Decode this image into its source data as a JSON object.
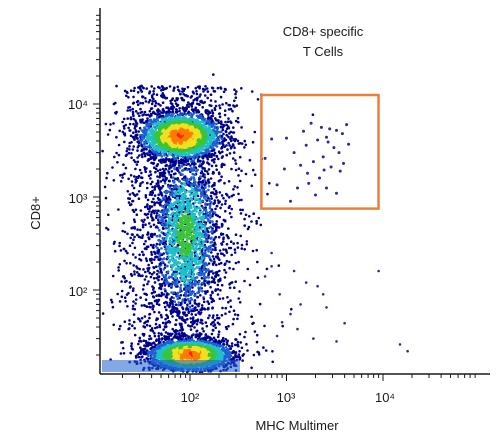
{
  "chart_data": {
    "type": "scatter",
    "title": "",
    "xlabel": "MHC Multimer",
    "ylabel": "CD8+",
    "x_scale": "log",
    "y_scale": "log",
    "xlim": [
      12,
      40000
    ],
    "ylim": [
      15,
      100000
    ],
    "x_ticks": [
      {
        "value": 100,
        "label": "10²"
      },
      {
        "value": 1000,
        "label": "10³"
      },
      {
        "value": 10000,
        "label": "10⁴"
      }
    ],
    "y_ticks": [
      {
        "value": 100,
        "label": "10²"
      },
      {
        "value": 1000,
        "label": "10³"
      },
      {
        "value": 10000,
        "label": "10⁴"
      }
    ],
    "grid": false,
    "colormap": [
      "#00008b",
      "#1f5fd1",
      "#20c0c8",
      "#3ac43a",
      "#f0e020",
      "#ff7a00",
      "#ff1a00"
    ],
    "populations": [
      {
        "label": "",
        "x_center": 80,
        "y_center": 4500,
        "x_spread": 0.2,
        "y_spread": 0.12,
        "density": "high"
      },
      {
        "label": "",
        "x_center": 100,
        "y_center": 20,
        "x_spread": 0.2,
        "y_spread": 0.08,
        "density": "highest"
      },
      {
        "label": "",
        "x_center": 90,
        "y_center": 400,
        "x_spread": 0.15,
        "y_spread": 0.4,
        "density": "medium"
      }
    ],
    "gate": {
      "label_line1": "CD8+ specific",
      "label_line2": "T Cells",
      "color": "#e9803a",
      "x_range": [
        550,
        9000
      ],
      "y_range": [
        750,
        12500
      ]
    },
    "gate_events": [
      [
        1800,
        6200
      ],
      [
        2300,
        5600
      ],
      [
        2800,
        5400
      ],
      [
        3300,
        5200
      ],
      [
        3800,
        4800
      ],
      [
        2600,
        4400
      ],
      [
        2100,
        4100
      ],
      [
        1600,
        3600
      ],
      [
        1200,
        3000
      ],
      [
        3100,
        3400
      ],
      [
        2400,
        2700
      ],
      [
        1900,
        2400
      ],
      [
        1400,
        2200
      ],
      [
        950,
        2000
      ],
      [
        2900,
        2100
      ],
      [
        3600,
        1900
      ],
      [
        2200,
        1600
      ],
      [
        1700,
        1400
      ],
      [
        1300,
        1250
      ],
      [
        800,
        1350
      ],
      [
        2600,
        1250
      ],
      [
        3300,
        1100
      ],
      [
        2000,
        1050
      ],
      [
        1100,
        900
      ],
      [
        700,
        4200
      ],
      [
        600,
        2600
      ],
      [
        4200,
        6000
      ],
      [
        1500,
        5100
      ],
      [
        1000,
        4300
      ],
      [
        2700,
        3900
      ],
      [
        3500,
        3000
      ],
      [
        4400,
        3700
      ],
      [
        3900,
        2300
      ],
      [
        1650,
        1800
      ],
      [
        2450,
        1950
      ]
    ],
    "sparse_events": [
      [
        700,
        180
      ],
      [
        1200,
        160
      ],
      [
        1600,
        120
      ],
      [
        2100,
        110
      ],
      [
        850,
        90
      ],
      [
        1400,
        70
      ],
      [
        2600,
        65
      ],
      [
        900,
        45
      ],
      [
        1300,
        38
      ],
      [
        1900,
        30
      ],
      [
        3300,
        28
      ],
      [
        4000,
        44
      ],
      [
        9000,
        160
      ],
      [
        15000,
        26
      ],
      [
        18000,
        22
      ],
      [
        1100,
        55
      ],
      [
        700,
        250
      ],
      [
        600,
        140
      ],
      [
        2400,
        90
      ],
      [
        800,
        32
      ]
    ]
  }
}
